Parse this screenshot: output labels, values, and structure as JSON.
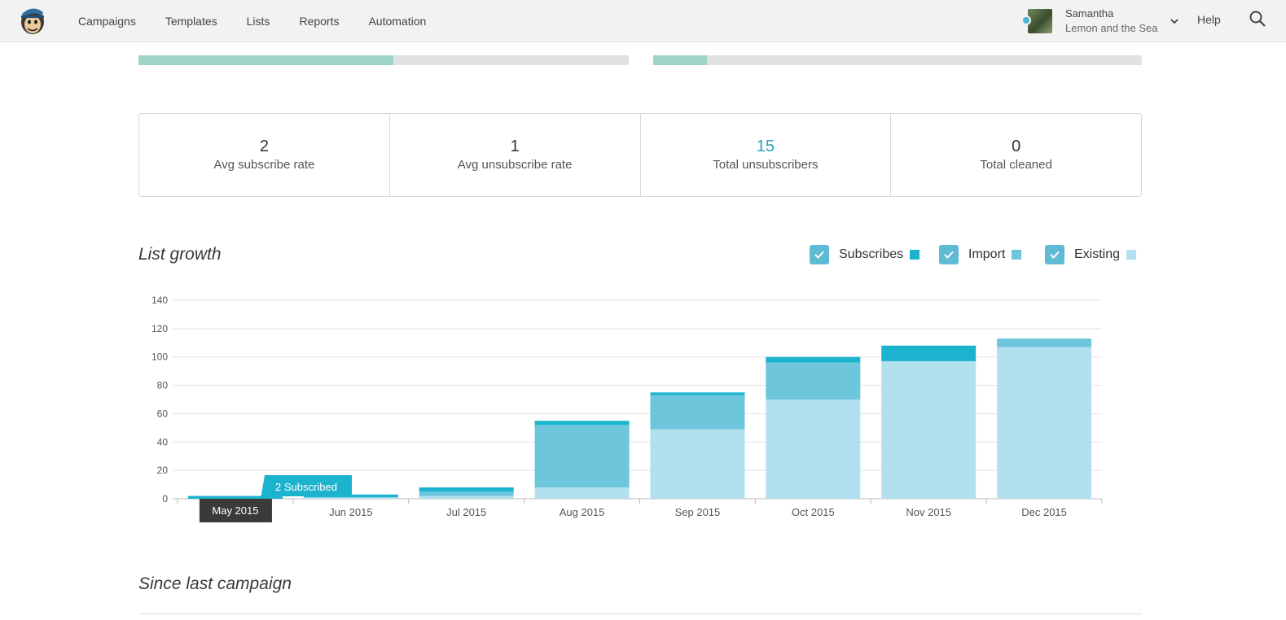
{
  "nav": {
    "items": [
      "Campaigns",
      "Templates",
      "Lists",
      "Reports",
      "Automation"
    ],
    "user_name": "Samantha",
    "user_org": "Lemon and the Sea",
    "help": "Help"
  },
  "progress_bars": [
    {
      "value": 0.52
    },
    {
      "value": 0.11
    }
  ],
  "stats": [
    {
      "value": "2",
      "label": "Avg subscribe rate",
      "color": "#333333"
    },
    {
      "value": "1",
      "label": "Avg unsubscribe rate",
      "color": "#333333"
    },
    {
      "value": "15",
      "label": "Total unsubscribers",
      "color": "#2aa2b8"
    },
    {
      "value": "0",
      "label": "Total cleaned",
      "color": "#333333"
    }
  ],
  "list_growth": {
    "title": "List growth",
    "legend": [
      {
        "label": "Subscribes",
        "color": "#1cb3cf"
      },
      {
        "label": "Import",
        "color": "#6ec6dd"
      },
      {
        "label": "Existing",
        "color": "#b2e0ee"
      }
    ]
  },
  "tooltip": {
    "text": "2 Subscribed",
    "month": "May 2015"
  },
  "chart_data": {
    "type": "bar",
    "stacked": true,
    "title": "List growth",
    "categories": [
      "May 2015",
      "Jun 2015",
      "Jul 2015",
      "Aug 2015",
      "Sep 2015",
      "Oct 2015",
      "Nov 2015",
      "Dec 2015"
    ],
    "series": [
      {
        "name": "Existing",
        "color": "#b2e0ee",
        "values": [
          0,
          1,
          2,
          8,
          49,
          70,
          97,
          107
        ]
      },
      {
        "name": "Import",
        "color": "#6ec6dd",
        "values": [
          0,
          0,
          3,
          44,
          24,
          26,
          0,
          6
        ]
      },
      {
        "name": "Subscribes",
        "color": "#1cb3cf",
        "values": [
          2,
          2,
          3,
          3,
          2,
          4,
          11,
          0
        ]
      }
    ],
    "yticks": [
      0,
      20,
      40,
      60,
      80,
      100,
      120,
      140
    ],
    "ylim": [
      0,
      140
    ],
    "grid": true
  },
  "since_last": {
    "title": "Since last campaign"
  }
}
